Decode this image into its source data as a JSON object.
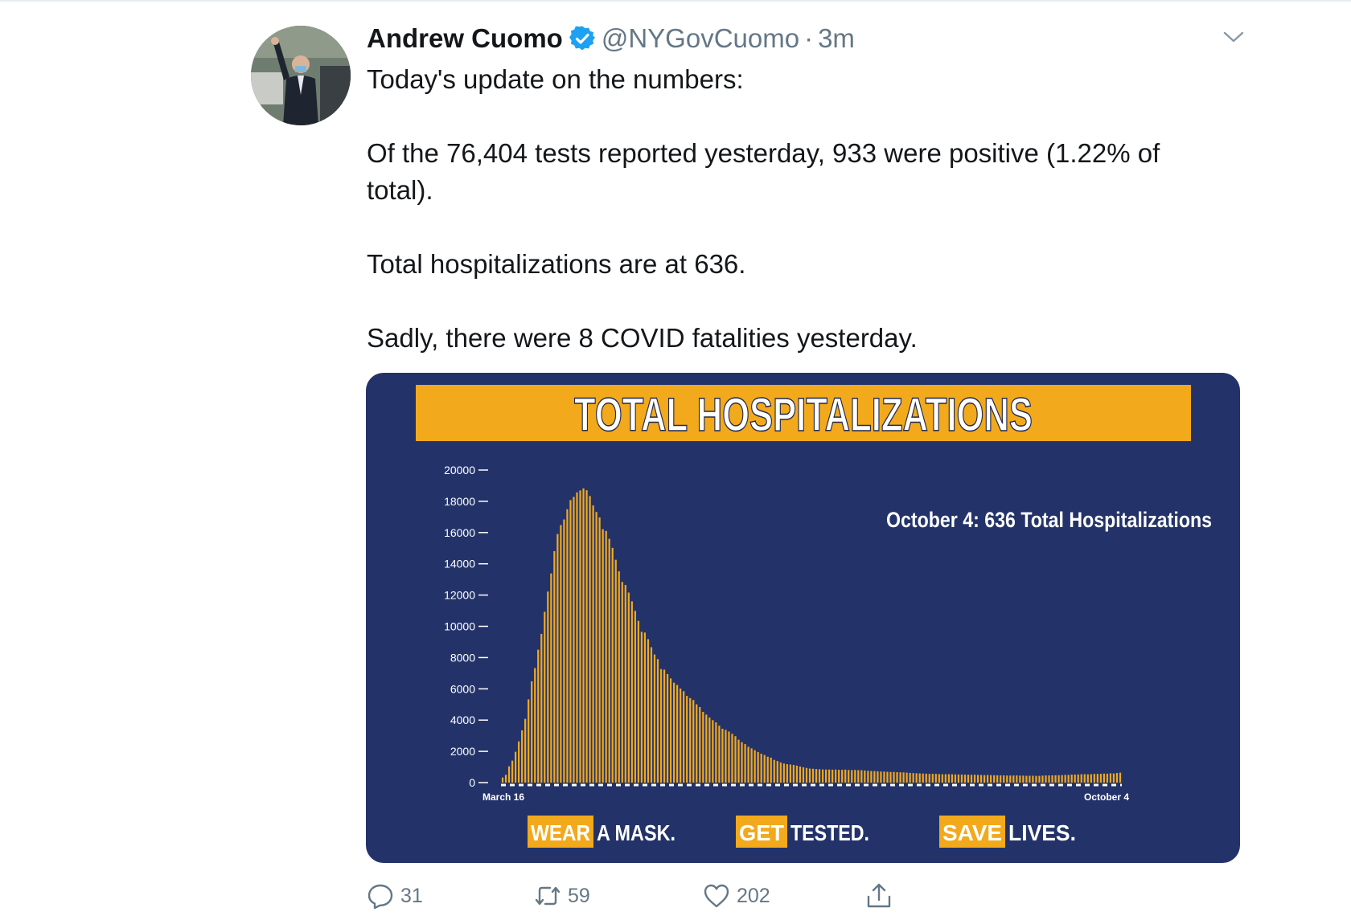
{
  "tweet": {
    "author_name": "Andrew Cuomo",
    "handle": "@NYGovCuomo",
    "separator": "·",
    "time": "3m",
    "paragraphs": [
      "Today's update on the numbers:",
      "Of the 76,404 tests reported yesterday, 933 were positive (1.22% of total).",
      "Total hospitalizations are at 636.",
      "Sadly, there were 8 COVID fatalities yesterday."
    ],
    "icons": {
      "verified": "verified-badge-icon",
      "more": "chevron-down-icon",
      "reply": "reply-icon",
      "retweet": "retweet-icon",
      "like": "heart-icon",
      "share": "share-icon"
    },
    "actions": {
      "reply_count": "31",
      "retweet_count": "59",
      "like_count": "202"
    },
    "colors": {
      "verified": "#1da1f2",
      "muted": "#657786",
      "chart_bg": "#23336a",
      "chart_accent": "#f2a91c"
    }
  },
  "chart_data": {
    "type": "bar",
    "title": "TOTAL HOSPITALIZATIONS",
    "annotation": "October 4: 636 Total Hospitalizations",
    "x_start_label": "March 16",
    "x_end_label": "October 4",
    "ylim": [
      0,
      20000
    ],
    "yticks": [
      0,
      2000,
      4000,
      6000,
      8000,
      10000,
      12000,
      14000,
      16000,
      18000,
      20000
    ],
    "grid": false,
    "values": [
      326,
      496,
      1042,
      1406,
      1974,
      2635,
      3343,
      4079,
      5327,
      6481,
      7328,
      8503,
      9517,
      10929,
      12226,
      13383,
      14810,
      15905,
      16479,
      16837,
      17493,
      18079,
      18279,
      18569,
      18697,
      18825,
      18707,
      18335,
      17735,
      17316,
      16967,
      16213,
      16103,
      15599,
      15021,
      14258,
      13524,
      12839,
      12646,
      12159,
      11598,
      10993,
      10350,
      9647,
      9600,
      9180,
      8665,
      8196,
      7904,
      7262,
      7226,
      6946,
      6666,
      6394,
      6250,
      6020,
      5845,
      5545,
      5404,
      5286,
      5008,
      4834,
      4525,
      4349,
      4161,
      3995,
      3852,
      3640,
      3446,
      3372,
      3268,
      3122,
      2968,
      2743,
      2591,
      2464,
      2290,
      2192,
      2073,
      1960,
      1850,
      1768,
      1657,
      1599,
      1452,
      1383,
      1288,
      1219,
      1176,
      1158,
      1131,
      1085,
      1030,
      982,
      938,
      897,
      885,
      869,
      852,
      842,
      835,
      834,
      826,
      834,
      817,
      815,
      832,
      807,
      802,
      812,
      795,
      789,
      775,
      755,
      740,
      736,
      722,
      707,
      706,
      691,
      678,
      681,
      668,
      659,
      651,
      638,
      619,
      609,
      597,
      588,
      580,
      572,
      555,
      561,
      554,
      544,
      536,
      536,
      537,
      532,
      525,
      519,
      512,
      509,
      506,
      497,
      506,
      492,
      485,
      478,
      487,
      475,
      471,
      466,
      461,
      463,
      454,
      452,
      457,
      456,
      447,
      446,
      434,
      437,
      438,
      431,
      432,
      447,
      458,
      460,
      465,
      470,
      471,
      480,
      496,
      492,
      510,
      515,
      521,
      532,
      538,
      530,
      536,
      556,
      552,
      560,
      574,
      570,
      592,
      586,
      614,
      636
    ],
    "footer": [
      {
        "highlight": "WEAR",
        "rest": "A MASK."
      },
      {
        "highlight": "GET",
        "rest": "TESTED."
      },
      {
        "highlight": "SAVE",
        "rest": "LIVES."
      }
    ]
  }
}
